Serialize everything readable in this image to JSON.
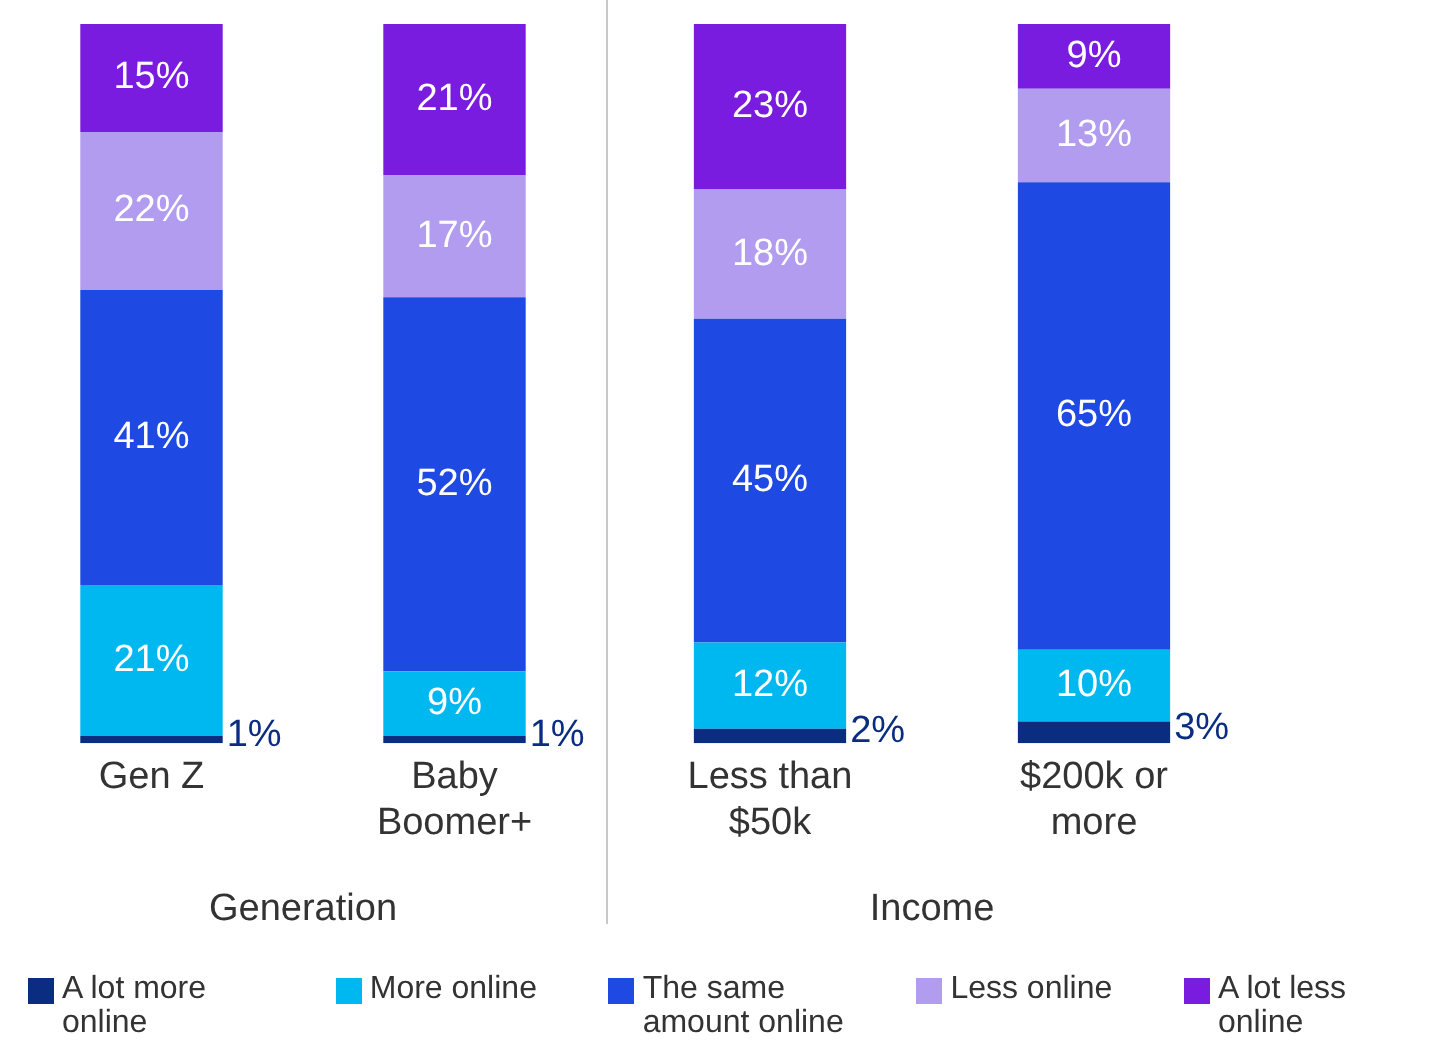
{
  "chart_data": [
    {
      "type": "bar",
      "stacked": true,
      "categories": [
        "Gen Z",
        "Baby Boomer+"
      ],
      "xlabel": "Generation",
      "ylim": [
        0,
        100
      ],
      "tick_labels": "x",
      "grid": false,
      "data_labels": true,
      "legend": "bottom",
      "series": [
        {
          "name": "A lot more online",
          "color": "#0a2d82",
          "values": [
            1,
            1
          ],
          "value_labels": [
            "1%",
            "1%"
          ]
        },
        {
          "name": "More online",
          "color": "#00b8f0",
          "values": [
            21,
            9
          ],
          "value_labels": [
            "21%",
            "9%"
          ]
        },
        {
          "name": "The same amount online",
          "color": "#1e49e2",
          "values": [
            41,
            52
          ],
          "value_labels": [
            "41%",
            "52%"
          ]
        },
        {
          "name": "Less online",
          "color": "#b19cf0",
          "values": [
            22,
            17
          ],
          "value_labels": [
            "22%",
            "17%"
          ]
        },
        {
          "name": "A lot less online",
          "color": "#7a1ce0",
          "values": [
            15,
            21
          ],
          "value_labels": [
            "15%",
            "21%"
          ]
        }
      ]
    },
    {
      "type": "bar",
      "stacked": true,
      "categories": [
        "Less than $50k",
        "$200k or more"
      ],
      "xlabel": "Income",
      "ylim": [
        0,
        100
      ],
      "tick_labels": "x",
      "grid": false,
      "data_labels": true,
      "series": [
        {
          "color": "#0a2d82",
          "values": [
            2,
            3
          ],
          "value_labels": [
            "2%",
            "3%"
          ]
        },
        {
          "color": "#00b8f0",
          "values": [
            12,
            10
          ],
          "value_labels": [
            "12%",
            "10%"
          ]
        },
        {
          "color": "#1e49e2",
          "values": [
            45,
            65
          ],
          "value_labels": [
            "45%",
            "65%"
          ]
        },
        {
          "color": "#b19cf0",
          "values": [
            18,
            13
          ],
          "value_labels": [
            "18%",
            "13%"
          ]
        },
        {
          "color": "#7a1ce0",
          "values": [
            23,
            9
          ],
          "value_labels": [
            "23%",
            "9%"
          ]
        }
      ]
    }
  ]
}
